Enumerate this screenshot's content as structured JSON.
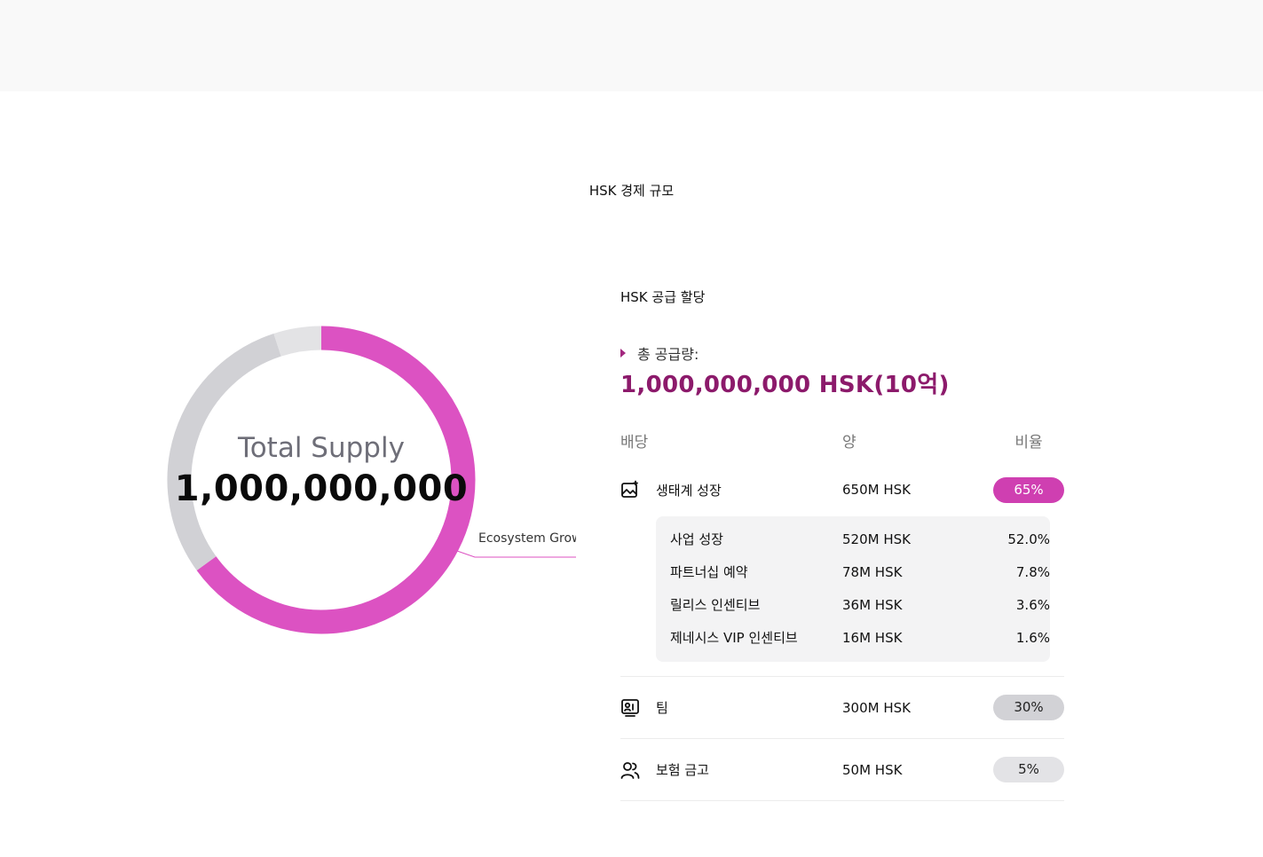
{
  "page": {
    "title": "HSK 경제 규모"
  },
  "chart_data": {
    "type": "pie",
    "center_label": "Total Supply",
    "center_value": "1,000,000,000",
    "slices": [
      {
        "name": "Ecosystem Grow",
        "value": 65,
        "color": "#dc52c2"
      },
      {
        "name": "",
        "value": 30,
        "color": "#d1d1d5"
      },
      {
        "name": "",
        "value": 5,
        "color": "#e3e3e5"
      }
    ],
    "callout_label": "Ecosystem Grow"
  },
  "allocation": {
    "title": "HSK 공급 할당",
    "total_label": "총 공급량:",
    "total_value": "1,000,000,000 HSK(10억)",
    "headers": {
      "name": "배당",
      "amount": "양",
      "percent": "비율"
    },
    "rows": [
      {
        "icon": "image-sparkle-icon",
        "name": "생태계 성장",
        "amount": "650M HSK",
        "percent": "65%",
        "sub": [
          {
            "name": "사업 성장",
            "amount": "520M HSK",
            "percent": "52.0%"
          },
          {
            "name": "파트너십 예약",
            "amount": "78M HSK",
            "percent": "7.8%"
          },
          {
            "name": "릴리스 인센티브",
            "amount": "36M HSK",
            "percent": "3.6%"
          },
          {
            "name": "제네시스 VIP 인센티브",
            "amount": "16M HSK",
            "percent": "1.6%"
          }
        ]
      },
      {
        "icon": "team-badge-icon",
        "name": "팀",
        "amount": "300M HSK",
        "percent": "30%"
      },
      {
        "icon": "users-icon",
        "name": "보험 금고",
        "amount": "50M HSK",
        "percent": "5%"
      }
    ]
  }
}
